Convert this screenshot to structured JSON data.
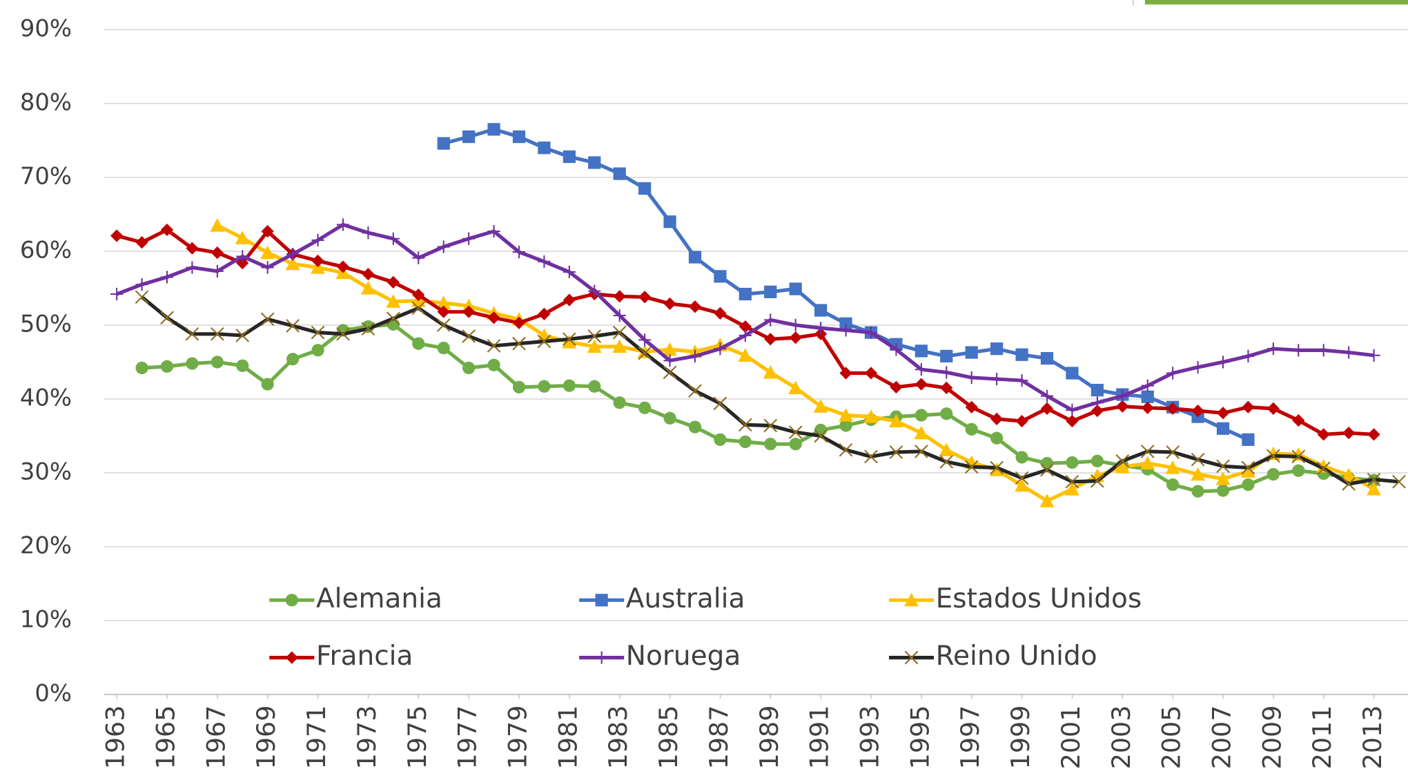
{
  "chart_data": {
    "type": "line",
    "x": [
      1963,
      1964,
      1965,
      1966,
      1967,
      1968,
      1969,
      1970,
      1971,
      1972,
      1973,
      1974,
      1975,
      1976,
      1977,
      1978,
      1979,
      1980,
      1981,
      1982,
      1983,
      1984,
      1985,
      1986,
      1987,
      1988,
      1989,
      1990,
      1991,
      1992,
      1993,
      1994,
      1995,
      1996,
      1997,
      1998,
      1999,
      2000,
      2001,
      2002,
      2003,
      2004,
      2005,
      2006,
      2007,
      2008,
      2009,
      2010,
      2011,
      2012,
      2013,
      2014
    ],
    "xlim": [
      1962.5,
      2014.5
    ],
    "xticks": [
      1963,
      1965,
      1967,
      1969,
      1971,
      1973,
      1975,
      1977,
      1979,
      1981,
      1983,
      1985,
      1987,
      1989,
      1991,
      1993,
      1995,
      1997,
      1999,
      2001,
      2003,
      2005,
      2007,
      2009,
      2011,
      2013
    ],
    "ylim": [
      0,
      90
    ],
    "yticks": [
      {
        "value": 0,
        "label": "0%"
      },
      {
        "value": 10,
        "label": "10%"
      },
      {
        "value": 20,
        "label": "20%"
      },
      {
        "value": 30,
        "label": "30%"
      },
      {
        "value": 40,
        "label": "40%"
      },
      {
        "value": 50,
        "label": "50%"
      },
      {
        "value": 60,
        "label": "60%"
      },
      {
        "value": 70,
        "label": "70%"
      },
      {
        "value": 80,
        "label": "80%"
      },
      {
        "value": 90,
        "label": "90%"
      }
    ],
    "grid": true,
    "legend": "lower center",
    "series": [
      {
        "name": "Alemania",
        "color": "#70ad47",
        "marker": "circle",
        "values": [
          null,
          44.2,
          44.4,
          44.8,
          45.0,
          44.5,
          42.0,
          45.4,
          46.6,
          49.3,
          49.8,
          50.1,
          47.5,
          46.9,
          44.2,
          44.6,
          41.6,
          41.7,
          41.8,
          41.7,
          39.5,
          38.8,
          37.4,
          36.2,
          34.5,
          34.2,
          33.9,
          33.9,
          35.8,
          36.4,
          37.2,
          37.6,
          37.8,
          38.0,
          35.9,
          34.7,
          32.1,
          31.3,
          31.4,
          31.6,
          31.0,
          30.5,
          28.4,
          27.5,
          27.6,
          28.4,
          29.8,
          30.3,
          29.9,
          29.3,
          29.0,
          null
        ]
      },
      {
        "name": "Australia",
        "color": "#4472c4",
        "marker": "square",
        "values": [
          null,
          null,
          null,
          null,
          null,
          null,
          null,
          null,
          null,
          null,
          null,
          null,
          null,
          74.6,
          75.5,
          76.5,
          75.5,
          74.0,
          72.8,
          72.0,
          70.5,
          68.5,
          64.0,
          59.2,
          56.6,
          54.2,
          54.5,
          54.9,
          52.0,
          50.2,
          49.0,
          47.4,
          46.5,
          45.8,
          46.3,
          46.8,
          46.0,
          45.5,
          43.5,
          41.2,
          40.6,
          40.3,
          38.9,
          37.6,
          36.0,
          34.5,
          null,
          null,
          null,
          null,
          null,
          null
        ]
      },
      {
        "name": "Estados Unidos",
        "color": "#ffc000",
        "marker": "triangle",
        "values": [
          null,
          null,
          null,
          null,
          63.5,
          61.8,
          59.8,
          58.3,
          57.8,
          57.1,
          55.0,
          53.2,
          53.3,
          53.0,
          52.6,
          51.6,
          50.8,
          48.6,
          47.7,
          47.1,
          47.1,
          46.4,
          46.7,
          46.4,
          47.3,
          45.9,
          43.6,
          41.5,
          39.0,
          37.8,
          37.6,
          37.0,
          35.4,
          33.1,
          31.4,
          30.4,
          28.3,
          26.2,
          27.8,
          29.6,
          30.8,
          31.3,
          30.7,
          29.8,
          29.2,
          30.2,
          32.6,
          32.5,
          30.9,
          29.7,
          27.8,
          null
        ]
      },
      {
        "name": "Francia",
        "color": "#c00000",
        "marker": "diamond",
        "values": [
          62.1,
          61.2,
          62.9,
          60.4,
          59.8,
          58.4,
          62.7,
          59.6,
          58.7,
          57.9,
          56.9,
          55.8,
          54.1,
          51.8,
          51.8,
          51.0,
          50.3,
          51.5,
          53.4,
          54.2,
          53.9,
          53.8,
          52.9,
          52.5,
          51.6,
          49.8,
          48.1,
          48.3,
          48.8,
          43.5,
          43.5,
          41.6,
          42.0,
          41.5,
          38.9,
          37.3,
          37.0,
          38.7,
          37.0,
          38.4,
          39.0,
          38.8,
          38.7,
          38.4,
          38.1,
          38.9,
          38.7,
          37.1,
          35.2,
          35.4,
          35.2,
          null
        ]
      },
      {
        "name": "Noruega",
        "color": "#7030a0",
        "marker": "plus",
        "values": [
          54.2,
          55.5,
          56.5,
          57.8,
          57.3,
          59.3,
          57.8,
          59.6,
          61.5,
          63.6,
          62.5,
          61.7,
          59.1,
          60.6,
          61.7,
          62.7,
          59.9,
          58.6,
          57.2,
          54.6,
          51.3,
          48.0,
          45.2,
          45.8,
          46.8,
          48.6,
          50.7,
          50.0,
          49.6,
          49.3,
          49.0,
          46.7,
          44.0,
          43.6,
          42.9,
          42.7,
          42.5,
          40.4,
          38.5,
          39.5,
          40.4,
          41.8,
          43.5,
          44.3,
          45.0,
          45.8,
          46.8,
          46.6,
          46.6,
          46.3,
          45.9,
          null
        ]
      },
      {
        "name": "Reino Unido",
        "color": "#262626",
        "marker": "x",
        "marker_color": "#8c6d1f",
        "values": [
          null,
          53.8,
          51.0,
          48.8,
          48.8,
          48.6,
          50.8,
          49.9,
          49.0,
          48.8,
          49.5,
          50.9,
          52.3,
          50.0,
          48.5,
          47.2,
          47.5,
          47.8,
          48.1,
          48.5,
          49.0,
          46.2,
          43.6,
          41.1,
          39.4,
          36.5,
          36.4,
          35.5,
          35.0,
          33.1,
          32.2,
          32.8,
          32.9,
          31.5,
          30.8,
          30.7,
          29.3,
          30.4,
          28.8,
          28.9,
          31.6,
          32.9,
          32.8,
          31.8,
          30.9,
          30.7,
          32.3,
          32.2,
          30.6,
          28.5,
          29.1,
          28.8
        ]
      }
    ]
  }
}
